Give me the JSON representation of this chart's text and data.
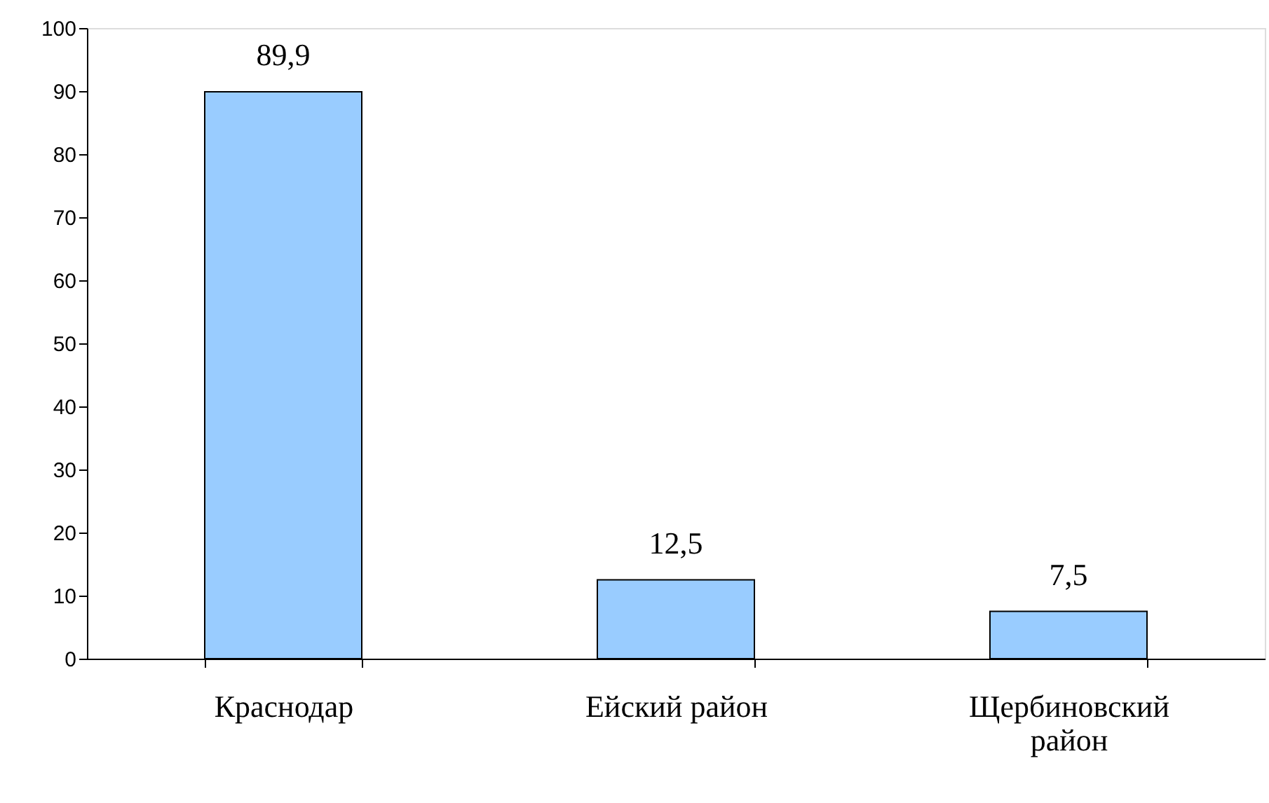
{
  "chart_data": {
    "type": "bar",
    "categories": [
      "Краснодар",
      "Ейский район",
      "Щербиновский район"
    ],
    "values": [
      89.9,
      12.5,
      7.5
    ],
    "value_labels": [
      "89,9",
      "12,5",
      "7,5"
    ],
    "color": "#99ccff",
    "ylim": [
      0,
      100
    ],
    "yticks": [
      0,
      10,
      20,
      30,
      40,
      50,
      60,
      70,
      80,
      90,
      100
    ],
    "grid": false
  }
}
